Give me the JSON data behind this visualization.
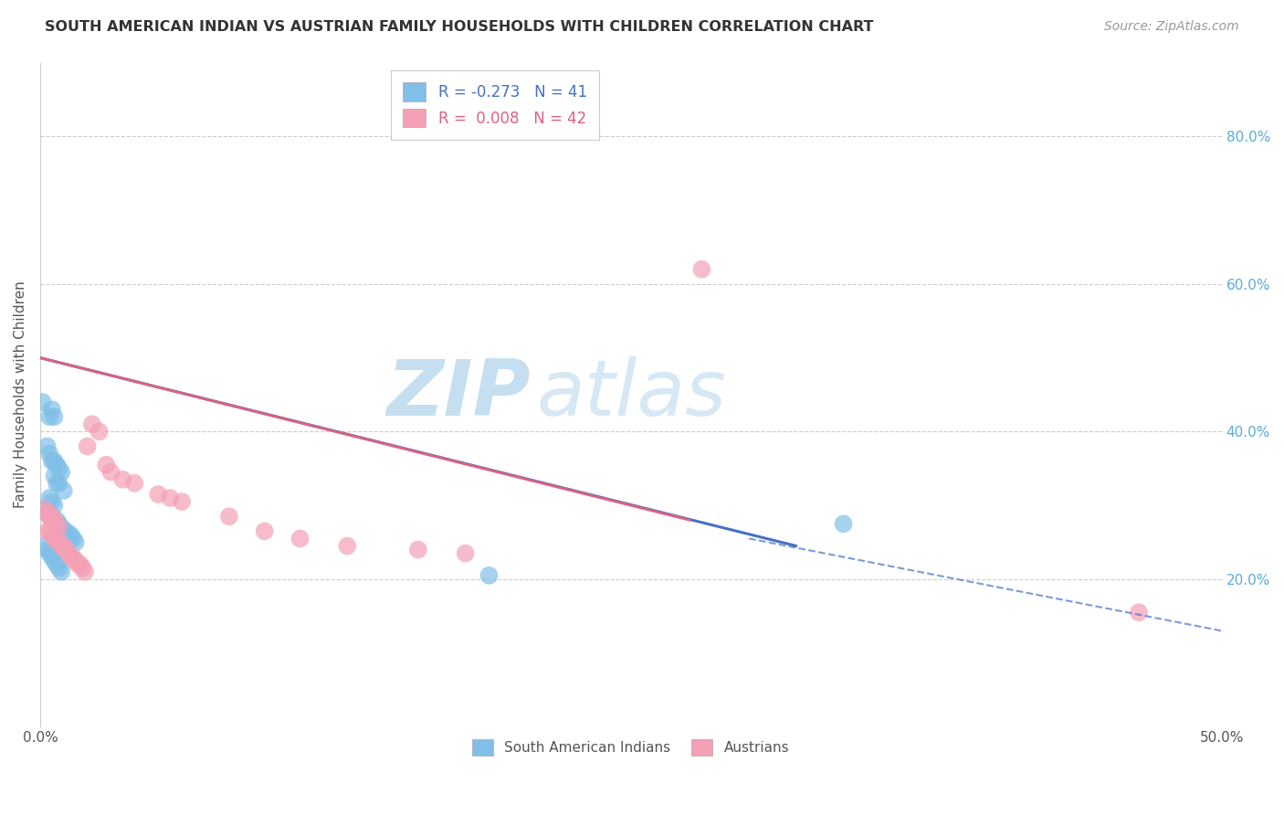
{
  "title": "SOUTH AMERICAN INDIAN VS AUSTRIAN FAMILY HOUSEHOLDS WITH CHILDREN CORRELATION CHART",
  "source": "Source: ZipAtlas.com",
  "ylabel": "Family Households with Children",
  "xlim": [
    0.0,
    0.5
  ],
  "ylim": [
    0.0,
    0.9
  ],
  "legend_r_blue": "-0.273",
  "legend_n_blue": "41",
  "legend_r_pink": "0.008",
  "legend_n_pink": "42",
  "blue_color": "#7fbfe8",
  "pink_color": "#f4a0b5",
  "blue_line_color": "#4472c4",
  "pink_line_color": "#e06080",
  "blue_scatter": [
    [
      0.001,
      0.44
    ],
    [
      0.004,
      0.42
    ],
    [
      0.005,
      0.43
    ],
    [
      0.006,
      0.42
    ],
    [
      0.003,
      0.38
    ],
    [
      0.004,
      0.37
    ],
    [
      0.005,
      0.36
    ],
    [
      0.006,
      0.36
    ],
    [
      0.007,
      0.355
    ],
    [
      0.008,
      0.35
    ],
    [
      0.009,
      0.345
    ],
    [
      0.006,
      0.34
    ],
    [
      0.007,
      0.33
    ],
    [
      0.008,
      0.33
    ],
    [
      0.01,
      0.32
    ],
    [
      0.004,
      0.31
    ],
    [
      0.005,
      0.305
    ],
    [
      0.006,
      0.3
    ],
    [
      0.002,
      0.295
    ],
    [
      0.003,
      0.29
    ],
    [
      0.004,
      0.285
    ],
    [
      0.005,
      0.285
    ],
    [
      0.007,
      0.28
    ],
    [
      0.008,
      0.275
    ],
    [
      0.009,
      0.27
    ],
    [
      0.01,
      0.265
    ],
    [
      0.011,
      0.265
    ],
    [
      0.012,
      0.26
    ],
    [
      0.013,
      0.26
    ],
    [
      0.014,
      0.255
    ],
    [
      0.015,
      0.25
    ],
    [
      0.002,
      0.245
    ],
    [
      0.003,
      0.24
    ],
    [
      0.004,
      0.235
    ],
    [
      0.005,
      0.23
    ],
    [
      0.006,
      0.225
    ],
    [
      0.007,
      0.22
    ],
    [
      0.008,
      0.215
    ],
    [
      0.009,
      0.21
    ],
    [
      0.34,
      0.275
    ],
    [
      0.19,
      0.205
    ]
  ],
  "pink_scatter": [
    [
      0.002,
      0.295
    ],
    [
      0.003,
      0.29
    ],
    [
      0.004,
      0.285
    ],
    [
      0.005,
      0.285
    ],
    [
      0.006,
      0.28
    ],
    [
      0.007,
      0.275
    ],
    [
      0.008,
      0.27
    ],
    [
      0.003,
      0.265
    ],
    [
      0.004,
      0.265
    ],
    [
      0.005,
      0.26
    ],
    [
      0.006,
      0.255
    ],
    [
      0.007,
      0.255
    ],
    [
      0.008,
      0.25
    ],
    [
      0.009,
      0.245
    ],
    [
      0.01,
      0.245
    ],
    [
      0.011,
      0.24
    ],
    [
      0.012,
      0.235
    ],
    [
      0.013,
      0.23
    ],
    [
      0.014,
      0.23
    ],
    [
      0.015,
      0.225
    ],
    [
      0.016,
      0.22
    ],
    [
      0.017,
      0.22
    ],
    [
      0.018,
      0.215
    ],
    [
      0.019,
      0.21
    ],
    [
      0.02,
      0.38
    ],
    [
      0.022,
      0.41
    ],
    [
      0.025,
      0.4
    ],
    [
      0.028,
      0.355
    ],
    [
      0.03,
      0.345
    ],
    [
      0.035,
      0.335
    ],
    [
      0.04,
      0.33
    ],
    [
      0.05,
      0.315
    ],
    [
      0.055,
      0.31
    ],
    [
      0.06,
      0.305
    ],
    [
      0.08,
      0.285
    ],
    [
      0.095,
      0.265
    ],
    [
      0.11,
      0.255
    ],
    [
      0.13,
      0.245
    ],
    [
      0.16,
      0.24
    ],
    [
      0.18,
      0.235
    ],
    [
      0.28,
      0.62
    ],
    [
      0.465,
      0.155
    ]
  ],
  "blue_trendline": [
    [
      0.0,
      0.5
    ],
    [
      0.32,
      0.245
    ]
  ],
  "blue_trendline_dash": [
    [
      0.3,
      0.255
    ],
    [
      0.5,
      0.13
    ]
  ],
  "pink_trendline": [
    [
      0.0,
      0.5
    ],
    [
      0.275,
      0.28
    ]
  ],
  "watermark_zip": "ZIP",
  "watermark_atlas": "atlas",
  "background_color": "#ffffff",
  "grid_color": "#cccccc",
  "right_axis_color": "#5aabdb"
}
